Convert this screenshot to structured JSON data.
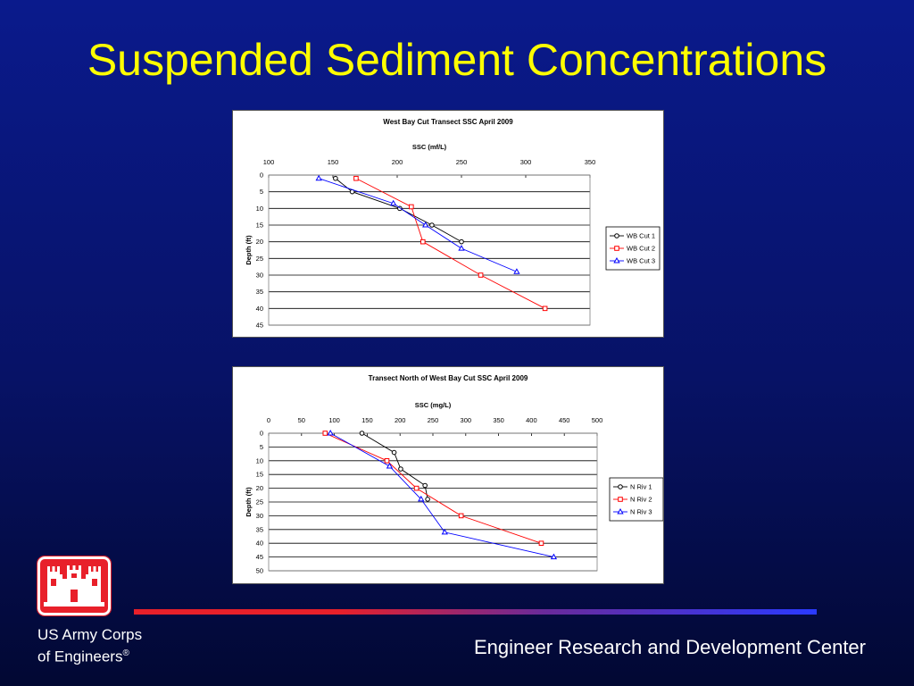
{
  "slide": {
    "title": "Suspended Sediment Concentrations",
    "footer_org_line1": "US Army Corps",
    "footer_org_line2": "of Engineers",
    "footer_org_mark": "®",
    "footer_center": "Engineer Research and Development Center"
  },
  "colors": {
    "title": "#ffff00",
    "series1": "#000000",
    "series2": "#ff0000",
    "series3": "#0000ff"
  },
  "chart_data": [
    {
      "type": "line",
      "title": "West Bay Cut Transect SSC April 2009",
      "xlabel": "SSC (mf/L)",
      "ylabel": "Depth (ft)",
      "xlim": [
        100,
        350
      ],
      "ylim": [
        0,
        45
      ],
      "x_ticks": [
        100,
        150,
        200,
        250,
        300,
        350
      ],
      "y_ticks": [
        0,
        5,
        10,
        15,
        20,
        25,
        30,
        35,
        40,
        45
      ],
      "y_inverted": true,
      "x_axis_position": "top",
      "grid": true,
      "legend": "right",
      "series": [
        {
          "name": "WB Cut 1",
          "marker": "circle",
          "color": "#000000",
          "points": [
            [
              152,
              1
            ],
            [
              165,
              5
            ],
            [
              202,
              10
            ],
            [
              227,
              15
            ],
            [
              250,
              20
            ]
          ]
        },
        {
          "name": "WB Cut 2",
          "marker": "square",
          "color": "#ff0000",
          "points": [
            [
              168,
              1
            ],
            [
              211,
              9.5
            ],
            [
              220,
              20
            ],
            [
              265,
              30
            ],
            [
              315,
              40
            ]
          ]
        },
        {
          "name": "WB Cut 3",
          "marker": "triangle",
          "color": "#0000ff",
          "points": [
            [
              139,
              1
            ],
            [
              197,
              8.5
            ],
            [
              222,
              15
            ],
            [
              250,
              22
            ],
            [
              293,
              29
            ]
          ]
        }
      ]
    },
    {
      "type": "line",
      "title": "Transect North of West Bay Cut SSC April 2009",
      "xlabel": "SSC (mg/L)",
      "ylabel": "Depth (ft)",
      "xlim": [
        0,
        500
      ],
      "ylim": [
        0,
        50
      ],
      "x_ticks": [
        0,
        50,
        100,
        150,
        200,
        250,
        300,
        350,
        400,
        450,
        500
      ],
      "y_ticks": [
        0,
        5,
        10,
        15,
        20,
        25,
        30,
        35,
        40,
        45,
        50
      ],
      "y_inverted": true,
      "x_axis_position": "top",
      "grid": true,
      "legend": "right",
      "series": [
        {
          "name": "N Riv 1",
          "marker": "circle",
          "color": "#000000",
          "points": [
            [
              142,
              0
            ],
            [
              191,
              7
            ],
            [
              201,
              13
            ],
            [
              238,
              19
            ],
            [
              242,
              24
            ]
          ]
        },
        {
          "name": "N Riv 2",
          "marker": "square",
          "color": "#ff0000",
          "points": [
            [
              86,
              0
            ],
            [
              180,
              10
            ],
            [
              225,
              20
            ],
            [
              293,
              30
            ],
            [
              415,
              40
            ]
          ]
        },
        {
          "name": "N Riv 3",
          "marker": "triangle",
          "color": "#0000ff",
          "points": [
            [
              94,
              0
            ],
            [
              184,
              12
            ],
            [
              232,
              24
            ],
            [
              268,
              36
            ],
            [
              434,
              45
            ]
          ]
        }
      ]
    }
  ]
}
